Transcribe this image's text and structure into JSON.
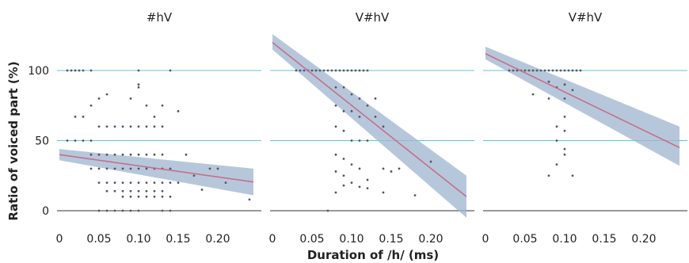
{
  "chart_data": {
    "type": "scatter",
    "xlabel": "Duration of /h/ (ms)",
    "ylabel": "Ratio of voiced part (%)",
    "xlim": [
      0,
      0.25
    ],
    "ylim": [
      -5,
      125
    ],
    "x_ticks": [
      0,
      0.05,
      0.1,
      0.15,
      0.2
    ],
    "x_tick_labels": [
      "0",
      "0.05",
      "0.10",
      "0.15",
      "0.20"
    ],
    "y_ticks": [
      0,
      50,
      100
    ],
    "y_tick_labels": [
      "0",
      "50",
      "100"
    ],
    "grid": "horizontal",
    "colors": {
      "points": "#555566",
      "fit_line": "#c4708a",
      "confidence_band": "#9fb4cf",
      "gridline": "#5bc8d8",
      "zero_line": "#333333"
    },
    "panels": [
      {
        "title": "#hV",
        "fit": {
          "x": [
            0,
            0.245
          ],
          "y": [
            40,
            20.5
          ]
        },
        "band": {
          "x": [
            0,
            0.245
          ],
          "lower": [
            36,
            11
          ],
          "upper": [
            44,
            30
          ]
        },
        "points": [
          [
            0.01,
            100
          ],
          [
            0.015,
            100
          ],
          [
            0.02,
            100
          ],
          [
            0.025,
            100
          ],
          [
            0.03,
            100
          ],
          [
            0.04,
            100
          ],
          [
            0.1,
            100
          ],
          [
            0.14,
            100
          ],
          [
            0.01,
            50
          ],
          [
            0.02,
            50
          ],
          [
            0.03,
            50
          ],
          [
            0.04,
            50
          ],
          [
            0.02,
            67
          ],
          [
            0.03,
            67
          ],
          [
            0.04,
            75
          ],
          [
            0.05,
            80
          ],
          [
            0.06,
            83
          ],
          [
            0.09,
            80
          ],
          [
            0.1,
            88
          ],
          [
            0.11,
            75
          ],
          [
            0.12,
            67
          ],
          [
            0.13,
            75
          ],
          [
            0.15,
            71
          ],
          [
            0.1,
            90
          ],
          [
            0.05,
            60
          ],
          [
            0.06,
            60
          ],
          [
            0.07,
            60
          ],
          [
            0.08,
            60
          ],
          [
            0.09,
            60
          ],
          [
            0.1,
            60
          ],
          [
            0.11,
            60
          ],
          [
            0.12,
            60
          ],
          [
            0.13,
            60
          ],
          [
            0.04,
            40
          ],
          [
            0.05,
            40
          ],
          [
            0.06,
            40
          ],
          [
            0.07,
            40
          ],
          [
            0.08,
            40
          ],
          [
            0.09,
            40
          ],
          [
            0.1,
            40
          ],
          [
            0.11,
            40
          ],
          [
            0.12,
            40
          ],
          [
            0.13,
            40
          ],
          [
            0.04,
            30
          ],
          [
            0.05,
            30
          ],
          [
            0.06,
            30
          ],
          [
            0.07,
            30
          ],
          [
            0.08,
            30
          ],
          [
            0.09,
            30
          ],
          [
            0.1,
            30
          ],
          [
            0.11,
            30
          ],
          [
            0.12,
            30
          ],
          [
            0.13,
            30
          ],
          [
            0.14,
            30
          ],
          [
            0.05,
            20
          ],
          [
            0.06,
            20
          ],
          [
            0.07,
            20
          ],
          [
            0.08,
            20
          ],
          [
            0.09,
            20
          ],
          [
            0.1,
            20
          ],
          [
            0.11,
            20
          ],
          [
            0.12,
            20
          ],
          [
            0.13,
            20
          ],
          [
            0.14,
            20
          ],
          [
            0.15,
            20
          ],
          [
            0.06,
            14
          ],
          [
            0.07,
            14
          ],
          [
            0.08,
            14
          ],
          [
            0.09,
            14
          ],
          [
            0.1,
            14
          ],
          [
            0.11,
            14
          ],
          [
            0.12,
            14
          ],
          [
            0.13,
            14
          ],
          [
            0.08,
            10
          ],
          [
            0.09,
            10
          ],
          [
            0.1,
            10
          ],
          [
            0.11,
            10
          ],
          [
            0.12,
            10
          ],
          [
            0.13,
            10
          ],
          [
            0.14,
            10
          ],
          [
            0.05,
            0
          ],
          [
            0.06,
            0
          ],
          [
            0.07,
            0
          ],
          [
            0.08,
            0
          ],
          [
            0.09,
            0
          ],
          [
            0.1,
            0
          ],
          [
            0.13,
            0
          ],
          [
            0.14,
            0
          ],
          [
            0.16,
            40
          ],
          [
            0.17,
            25
          ],
          [
            0.19,
            30
          ],
          [
            0.2,
            30
          ],
          [
            0.21,
            20
          ],
          [
            0.24,
            8
          ],
          [
            0.18,
            15
          ]
        ]
      },
      {
        "title": "V#hV",
        "fit": {
          "x": [
            0,
            0.245
          ],
          "y": [
            120,
            10
          ]
        },
        "band": {
          "x": [
            0,
            0.245
          ],
          "lower": [
            115,
            -5
          ],
          "upper": [
            126,
            25
          ]
        },
        "points": [
          [
            0.03,
            100
          ],
          [
            0.035,
            100
          ],
          [
            0.04,
            100
          ],
          [
            0.045,
            100
          ],
          [
            0.05,
            100
          ],
          [
            0.055,
            100
          ],
          [
            0.06,
            100
          ],
          [
            0.065,
            100
          ],
          [
            0.07,
            100
          ],
          [
            0.075,
            100
          ],
          [
            0.08,
            100
          ],
          [
            0.085,
            100
          ],
          [
            0.09,
            100
          ],
          [
            0.095,
            100
          ],
          [
            0.1,
            100
          ],
          [
            0.105,
            100
          ],
          [
            0.11,
            100
          ],
          [
            0.115,
            100
          ],
          [
            0.12,
            100
          ],
          [
            0.08,
            88
          ],
          [
            0.09,
            88
          ],
          [
            0.1,
            83
          ],
          [
            0.11,
            80
          ],
          [
            0.13,
            80
          ],
          [
            0.08,
            75
          ],
          [
            0.09,
            71
          ],
          [
            0.1,
            71
          ],
          [
            0.11,
            67
          ],
          [
            0.12,
            75
          ],
          [
            0.13,
            67
          ],
          [
            0.14,
            60
          ],
          [
            0.08,
            60
          ],
          [
            0.09,
            57
          ],
          [
            0.1,
            50
          ],
          [
            0.11,
            50
          ],
          [
            0.12,
            50
          ],
          [
            0.08,
            40
          ],
          [
            0.09,
            37
          ],
          [
            0.1,
            33
          ],
          [
            0.11,
            30
          ],
          [
            0.08,
            28
          ],
          [
            0.09,
            25
          ],
          [
            0.1,
            20
          ],
          [
            0.12,
            22
          ],
          [
            0.14,
            30
          ],
          [
            0.15,
            28
          ],
          [
            0.16,
            30
          ],
          [
            0.2,
            35
          ],
          [
            0.08,
            13
          ],
          [
            0.09,
            18
          ],
          [
            0.11,
            17
          ],
          [
            0.12,
            16
          ],
          [
            0.14,
            13
          ],
          [
            0.18,
            11
          ],
          [
            0.07,
            0
          ]
        ]
      },
      {
        "title": "V#hV",
        "fit": {
          "x": [
            0,
            0.245
          ],
          "y": [
            112,
            45
          ]
        },
        "band": {
          "x": [
            0,
            0.245
          ],
          "lower": [
            108,
            32
          ],
          "upper": [
            117,
            60
          ]
        },
        "points": [
          [
            0.03,
            100
          ],
          [
            0.035,
            100
          ],
          [
            0.04,
            100
          ],
          [
            0.045,
            100
          ],
          [
            0.05,
            100
          ],
          [
            0.055,
            100
          ],
          [
            0.06,
            100
          ],
          [
            0.065,
            100
          ],
          [
            0.07,
            100
          ],
          [
            0.075,
            100
          ],
          [
            0.08,
            100
          ],
          [
            0.085,
            100
          ],
          [
            0.09,
            100
          ],
          [
            0.095,
            100
          ],
          [
            0.1,
            100
          ],
          [
            0.105,
            100
          ],
          [
            0.11,
            100
          ],
          [
            0.115,
            100
          ],
          [
            0.12,
            100
          ],
          [
            0.08,
            92
          ],
          [
            0.1,
            90
          ],
          [
            0.09,
            88
          ],
          [
            0.11,
            86
          ],
          [
            0.08,
            80
          ],
          [
            0.1,
            80
          ],
          [
            0.06,
            83
          ],
          [
            0.1,
            67
          ],
          [
            0.09,
            60
          ],
          [
            0.1,
            57
          ],
          [
            0.09,
            50
          ],
          [
            0.1,
            44
          ],
          [
            0.1,
            40
          ],
          [
            0.09,
            33
          ],
          [
            0.11,
            25
          ],
          [
            0.08,
            25
          ]
        ]
      }
    ]
  }
}
